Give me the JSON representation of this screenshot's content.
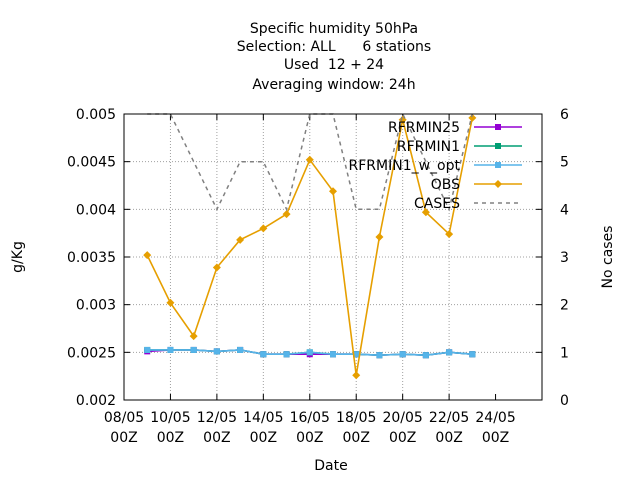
{
  "chart_data": {
    "type": "line",
    "title_lines": [
      "Specific humidity 50hPa",
      "Selection: ALL      6 stations",
      "Used  12 + 24",
      "Averaging window: 24h"
    ],
    "xlabel": "Date",
    "ylabel": "g/Kg",
    "y2label": "No cases",
    "xlim": [
      0,
      36
    ],
    "x_ticks": [
      {
        "x": 0,
        "label1": "08/05",
        "label2": "00Z"
      },
      {
        "x": 4,
        "label1": "10/05",
        "label2": "00Z"
      },
      {
        "x": 8,
        "label1": "12/05",
        "label2": "00Z"
      },
      {
        "x": 12,
        "label1": "14/05",
        "label2": "00Z"
      },
      {
        "x": 16,
        "label1": "16/05",
        "label2": "00Z"
      },
      {
        "x": 20,
        "label1": "18/05",
        "label2": "00Z"
      },
      {
        "x": 24,
        "label1": "20/05",
        "label2": "00Z"
      },
      {
        "x": 28,
        "label1": "22/05",
        "label2": "00Z"
      },
      {
        "x": 32,
        "label1": "24/05",
        "label2": "00Z"
      }
    ],
    "ylim": [
      0.002,
      0.005
    ],
    "y_ticks": [
      "0.002",
      "0.0025",
      "0.003",
      "0.0035",
      "0.004",
      "0.0045",
      "0.005"
    ],
    "y2lim": [
      0,
      6
    ],
    "y2_ticks": [
      "0",
      "1",
      "2",
      "3",
      "4",
      "5",
      "6"
    ],
    "grid": true,
    "legend_position": "top-right",
    "x": [
      2,
      4,
      6,
      8,
      10,
      12,
      14,
      16,
      18,
      20,
      22,
      24,
      26,
      28,
      30
    ],
    "series": [
      {
        "name": "RFRMIN25",
        "color": "#9400d3",
        "marker": "square",
        "values": [
          0.00251,
          0.002525,
          0.002525,
          0.00251,
          0.002525,
          0.00248,
          0.00248,
          0.00248,
          0.00248,
          0.00248,
          0.00247,
          0.00248,
          0.00247,
          0.0025,
          0.00248
        ]
      },
      {
        "name": "RFRMIN1",
        "color": "#009e73",
        "marker": "square",
        "values": [
          0.002525,
          0.002525,
          0.002525,
          0.00251,
          0.002525,
          0.00248,
          0.00248,
          0.0025,
          0.00248,
          0.00248,
          0.00247,
          0.00248,
          0.00247,
          0.0025,
          0.00248
        ]
      },
      {
        "name": "RFRMIN1_w_opt",
        "color": "#56b4e9",
        "marker": "square",
        "values": [
          0.002525,
          0.002525,
          0.002525,
          0.00251,
          0.002525,
          0.00248,
          0.00248,
          0.0025,
          0.00248,
          0.00248,
          0.00247,
          0.00248,
          0.00247,
          0.0025,
          0.00248
        ]
      },
      {
        "name": "OBS",
        "color": "#e69f00",
        "marker": "diamond",
        "values": [
          0.00352,
          0.00302,
          0.00267,
          0.00339,
          0.00368,
          0.0038,
          0.00395,
          0.00452,
          0.00419,
          0.00226,
          0.00371,
          0.00494,
          0.00397,
          0.00374,
          0.00496
        ]
      },
      {
        "name": "CASES",
        "color": "#808080",
        "dash": true,
        "axis": "y2",
        "x": [
          2,
          4,
          6,
          8,
          10,
          12,
          14,
          16,
          18,
          20,
          22,
          24,
          26,
          28,
          30
        ],
        "values": [
          6,
          6,
          5,
          4,
          5,
          5,
          4,
          6,
          6,
          4,
          4,
          6,
          5,
          4,
          6
        ]
      }
    ],
    "legend": [
      "RFRMIN25",
      "RFRMIN1",
      "RFRMIN1_w_opt",
      "OBS",
      "CASES"
    ]
  }
}
